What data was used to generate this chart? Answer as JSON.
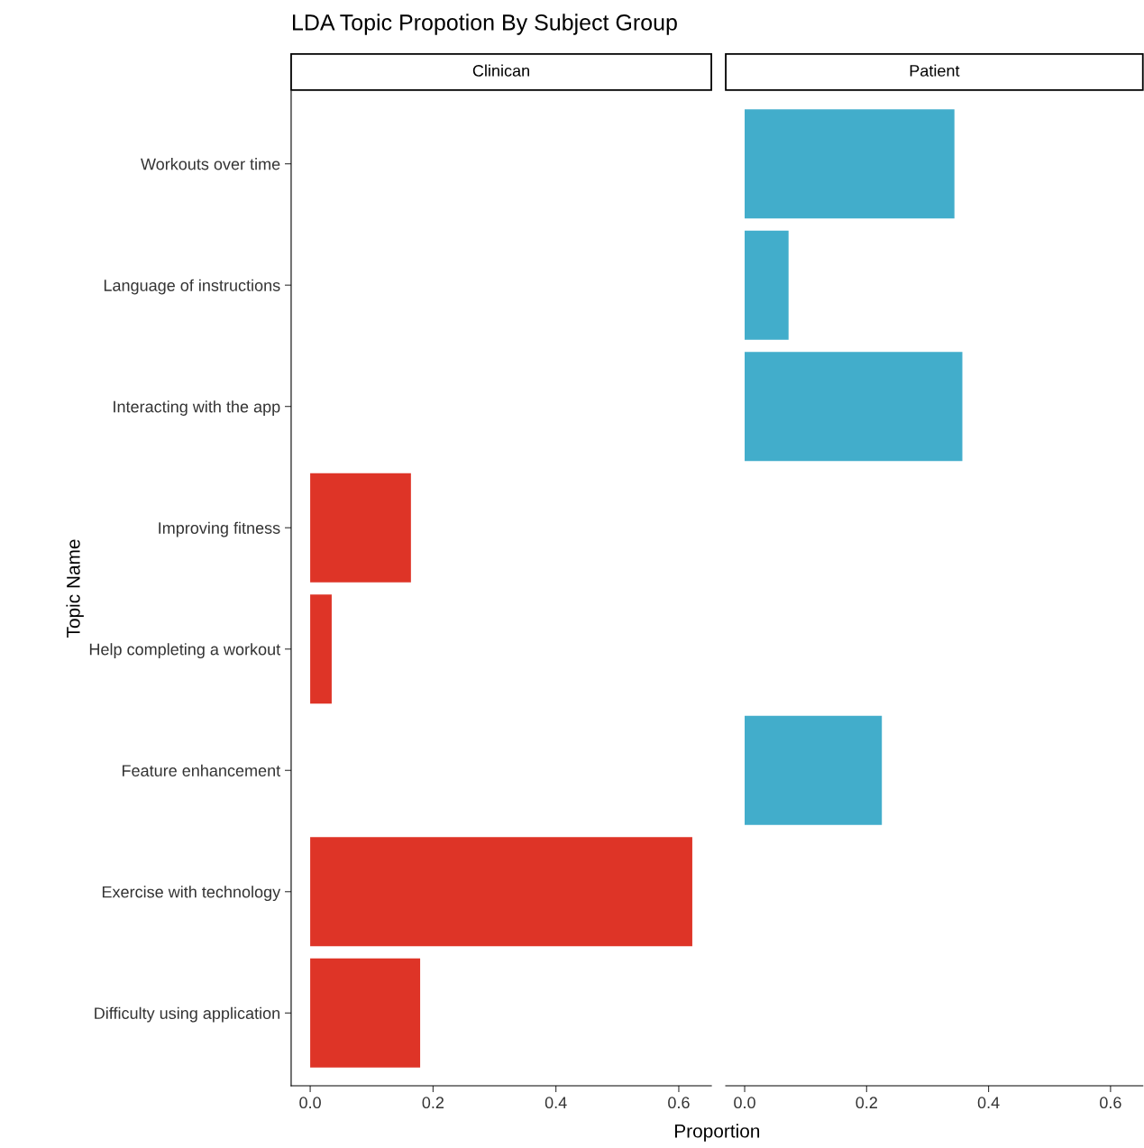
{
  "chart_data": [
    {
      "type": "bar",
      "orientation": "horizontal",
      "title": "LDA Topic Propotion By Subject Group",
      "subtitle": "Clinican",
      "xlabel": "Proportion",
      "ylabel": "Topic Name",
      "categories": [
        "Workouts over time",
        "Language of instructions",
        "Interacting with the app",
        "Improving fitness",
        "Help completing a workout",
        "Feature enhancement",
        "Exercise with technology",
        "Difficulty using application"
      ],
      "values": [
        null,
        null,
        null,
        0.164,
        0.035,
        null,
        0.622,
        0.179
      ],
      "color": "#de3427",
      "xlim": [
        -0.031,
        0.653
      ],
      "xticks": [
        {
          "value": 0,
          "label": "0.0"
        },
        0.2,
        0.4,
        0.6
      ],
      "grid": false,
      "legend": false
    },
    {
      "type": "bar",
      "orientation": "horizontal",
      "subtitle": "Patient",
      "values": [
        0.344,
        0.072,
        0.357,
        null,
        null,
        0.225,
        null,
        null
      ],
      "color": "#42adcb",
      "xlim": [
        -0.031,
        0.653
      ],
      "xticks": [
        {
          "value": 0,
          "label": "0.0"
        },
        0.2,
        0.4,
        0.6
      ],
      "grid": false,
      "legend": false,
      "tick_labels": "x"
    }
  ]
}
